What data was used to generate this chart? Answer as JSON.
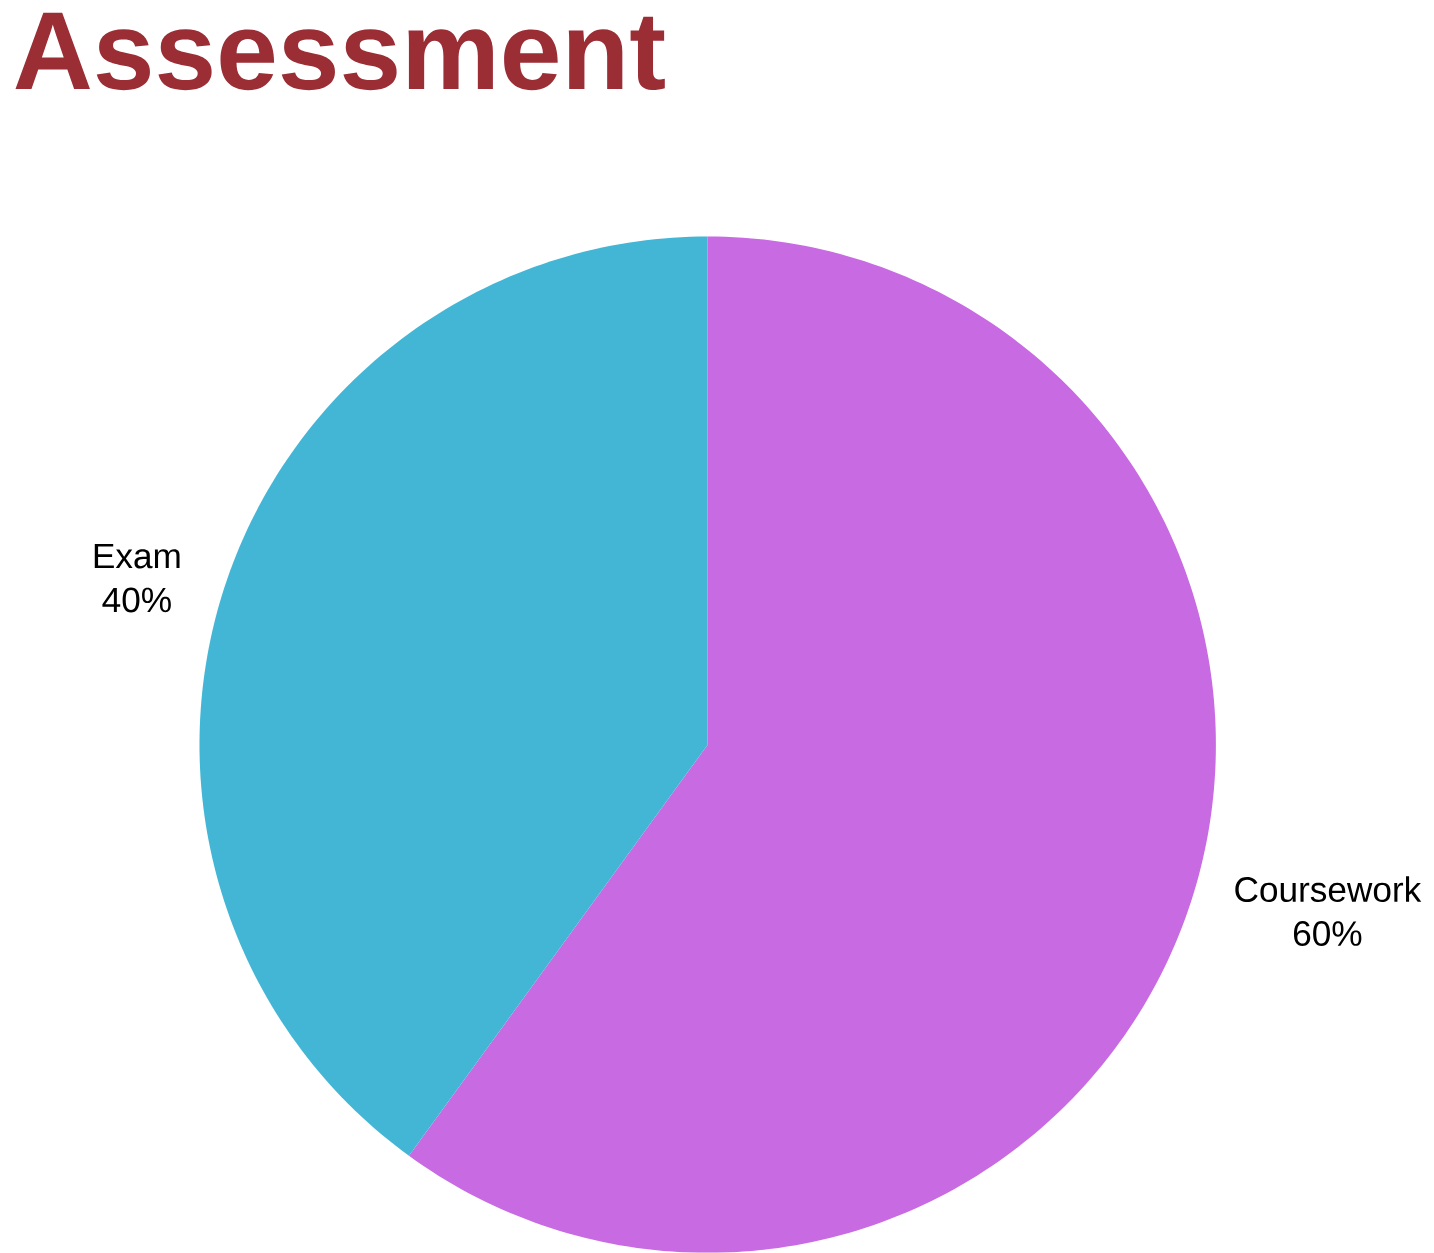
{
  "chart_data": {
    "type": "pie",
    "title": "Assessment",
    "categories": [
      "Coursework",
      "Exam"
    ],
    "values": [
      60,
      40
    ],
    "colors": [
      "#c86be3",
      "#43b6d6"
    ],
    "value_labels": [
      "60%",
      "40%"
    ]
  }
}
